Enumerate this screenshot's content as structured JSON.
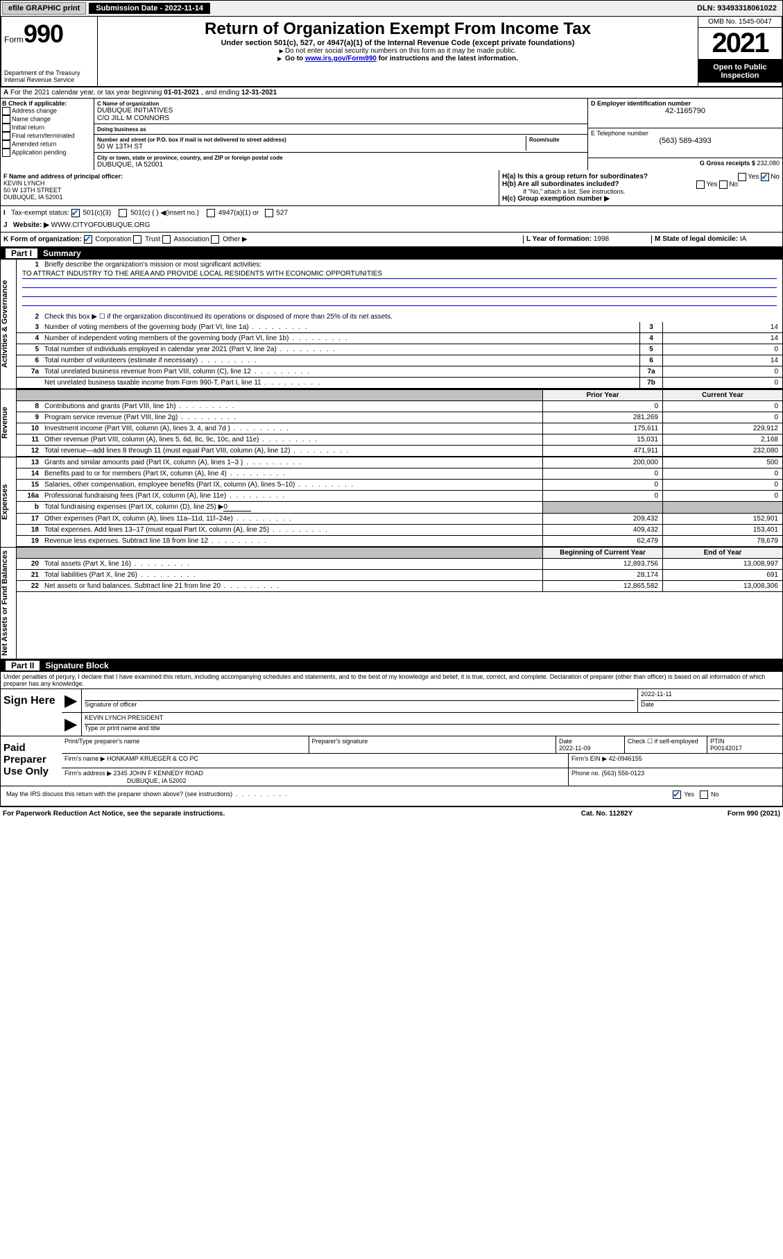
{
  "topbar": {
    "efile": "efile GRAPHIC print",
    "submission_label": "Submission Date -",
    "submission_date": "2022-11-14",
    "dln_label": "DLN:",
    "dln": "93493318061022"
  },
  "header": {
    "form_label": "Form",
    "form_number": "990",
    "dept": "Department of the Treasury\nInternal Revenue Service",
    "title": "Return of Organization Exempt From Income Tax",
    "subtitle": "Under section 501(c), 527, or 4947(a)(1) of the Internal Revenue Code (except private foundations)",
    "note1": "Do not enter social security numbers on this form as it may be made public.",
    "note2_pre": "Go to ",
    "note2_link": "www.irs.gov/Form990",
    "note2_post": " for instructions and the latest information.",
    "omb": "OMB No. 1545-0047",
    "year": "2021",
    "inspection": "Open to Public Inspection"
  },
  "section_a": {
    "text_pre": "For the 2021 calendar year, or tax year beginning ",
    "begin": "01-01-2021",
    "mid": " , and ending ",
    "end": "12-31-2021"
  },
  "section_b": {
    "label": "B Check if applicable:",
    "opts": [
      "Address change",
      "Name change",
      "Initial return",
      "Final return/terminated",
      "Amended return",
      "Application pending"
    ]
  },
  "section_c": {
    "name_label": "C Name of organization",
    "name": "DUBUQUE INITIATIVES",
    "care_of": "C/O JILL M CONNORS",
    "dba_label": "Doing business as",
    "dba": "",
    "street_label": "Number and street (or P.O. box if mail is not delivered to street address)",
    "room_label": "Room/suite",
    "street": "50 W 13TH ST",
    "city_label": "City or town, state or province, country, and ZIP or foreign postal code",
    "city": "DUBUQUE, IA  52001"
  },
  "section_d": {
    "label": "D Employer identification number",
    "val": "42-1165790"
  },
  "section_e": {
    "label": "E Telephone number",
    "val": "(563) 589-4393"
  },
  "section_g": {
    "label": "G Gross receipts $",
    "val": "232,080"
  },
  "section_f": {
    "label": "F  Name and address of principal officer:",
    "name": "KEVIN LYNCH",
    "addr1": "50 W 13TH STREET",
    "addr2": "DUBUQUE, IA  52001"
  },
  "section_h": {
    "ha": "H(a)  Is this a group return for subordinates?",
    "ha_no_checked": true,
    "hb": "H(b)  Are all subordinates included?",
    "hb_note": "If \"No,\" attach a list. See instructions.",
    "hc": "H(c)  Group exemption number ▶"
  },
  "section_i": {
    "label": "Tax-exempt status:",
    "opt1": "501(c)(3)",
    "opt1_checked": true,
    "opt2": "501(c) (   ) ◀(insert no.)",
    "opt3": "4947(a)(1) or",
    "opt4": "527"
  },
  "section_j": {
    "label": "Website: ▶",
    "val": "WWW.CITYOFDUBUQUE.ORG"
  },
  "section_k": {
    "label": "K Form of organization:",
    "opts": [
      "Corporation",
      "Trust",
      "Association",
      "Other ▶"
    ],
    "checked_index": 0
  },
  "section_l": {
    "label": "L Year of formation:",
    "val": "1998"
  },
  "section_m": {
    "label": "M State of legal domicile:",
    "val": "IA"
  },
  "part1": {
    "label": "Part I",
    "title": "Summary",
    "line1_label": "Briefly describe the organization's mission or most significant activities:",
    "mission": "TO ATTRACT INDUSTRY TO THE AREA AND PROVIDE LOCAL RESIDENTS WITH ECONOMIC OPPORTUNITIES",
    "line2": "Check this box ▶ ☐  if the organization discontinued its operations or disposed of more than 25% of its net assets.",
    "governance_lines": [
      {
        "n": "3",
        "d": "Number of voting members of the governing body (Part VI, line 1a)",
        "c": "3",
        "v": "14"
      },
      {
        "n": "4",
        "d": "Number of independent voting members of the governing body (Part VI, line 1b)",
        "c": "4",
        "v": "14"
      },
      {
        "n": "5",
        "d": "Total number of individuals employed in calendar year 2021 (Part V, line 2a)",
        "c": "5",
        "v": "0"
      },
      {
        "n": "6",
        "d": "Total number of volunteers (estimate if necessary)",
        "c": "6",
        "v": "14"
      },
      {
        "n": "7a",
        "d": "Total unrelated business revenue from Part VIII, column (C), line 12",
        "c": "7a",
        "v": "0"
      },
      {
        "n": "",
        "d": "Net unrelated business taxable income from Form 990-T, Part I, line 11",
        "c": "7b",
        "v": "0"
      }
    ],
    "col_prior": "Prior Year",
    "col_current": "Current Year",
    "revenue_lines": [
      {
        "n": "8",
        "d": "Contributions and grants (Part VIII, line 1h)",
        "p": "0",
        "c": "0"
      },
      {
        "n": "9",
        "d": "Program service revenue (Part VIII, line 2g)",
        "p": "281,269",
        "c": "0"
      },
      {
        "n": "10",
        "d": "Investment income (Part VIII, column (A), lines 3, 4, and 7d )",
        "p": "175,611",
        "c": "229,912"
      },
      {
        "n": "11",
        "d": "Other revenue (Part VIII, column (A), lines 5, 6d, 8c, 9c, 10c, and 11e)",
        "p": "15,031",
        "c": "2,168"
      },
      {
        "n": "12",
        "d": "Total revenue—add lines 8 through 11 (must equal Part VIII, column (A), line 12)",
        "p": "471,911",
        "c": "232,080"
      }
    ],
    "expense_lines": [
      {
        "n": "13",
        "d": "Grants and similar amounts paid (Part IX, column (A), lines 1–3 )",
        "p": "200,000",
        "c": "500"
      },
      {
        "n": "14",
        "d": "Benefits paid to or for members (Part IX, column (A), line 4)",
        "p": "0",
        "c": "0"
      },
      {
        "n": "15",
        "d": "Salaries, other compensation, employee benefits (Part IX, column (A), lines 5–10)",
        "p": "0",
        "c": "0"
      },
      {
        "n": "16a",
        "d": "Professional fundraising fees (Part IX, column (A), line 11e)",
        "p": "0",
        "c": "0"
      }
    ],
    "line16b_label": "Total fundraising expenses (Part IX, column (D), line 25) ▶",
    "line16b_val": "0",
    "expense_lines2": [
      {
        "n": "17",
        "d": "Other expenses (Part IX, column (A), lines 11a–11d, 11f–24e)",
        "p": "209,432",
        "c": "152,901"
      },
      {
        "n": "18",
        "d": "Total expenses. Add lines 13–17 (must equal Part IX, column (A), line 25)",
        "p": "409,432",
        "c": "153,401"
      },
      {
        "n": "19",
        "d": "Revenue less expenses. Subtract line 18 from line 12",
        "p": "62,479",
        "c": "78,679"
      }
    ],
    "col_begin": "Beginning of Current Year",
    "col_end": "End of Year",
    "net_lines": [
      {
        "n": "20",
        "d": "Total assets (Part X, line 16)",
        "p": "12,893,756",
        "c": "13,008,997"
      },
      {
        "n": "21",
        "d": "Total liabilities (Part X, line 26)",
        "p": "28,174",
        "c": "691"
      },
      {
        "n": "22",
        "d": "Net assets or fund balances. Subtract line 21 from line 20",
        "p": "12,865,582",
        "c": "13,008,306"
      }
    ]
  },
  "part2": {
    "label": "Part II",
    "title": "Signature Block",
    "declaration": "Under penalties of perjury, I declare that I have examined this return, including accompanying schedules and statements, and to the best of my knowledge and belief, it is true, correct, and complete. Declaration of preparer (other than officer) is based on all information of which preparer has any knowledge.",
    "sign_here": "Sign Here",
    "sig_officer": "Signature of officer",
    "sig_date": "2022-11-11",
    "date_label": "Date",
    "officer_name": "KEVIN LYNCH  PRESIDENT",
    "type_name": "Type or print name and title",
    "paid": "Paid Preparer Use Only",
    "prep_name_label": "Print/Type preparer's name",
    "prep_sig_label": "Preparer's signature",
    "prep_date_label": "Date",
    "prep_date": "2022-11-09",
    "check_if": "Check ☐ if self-employed",
    "ptin_label": "PTIN",
    "ptin": "P00142017",
    "firm_name_label": "Firm's name    ▶",
    "firm_name": "HONKAMP KRUEGER & CO PC",
    "firm_ein_label": "Firm's EIN ▶",
    "firm_ein": "42-0946155",
    "firm_addr_label": "Firm's address ▶",
    "firm_addr1": "2345 JOHN F KENNEDY ROAD",
    "firm_addr2": "DUBUQUE, IA  52002",
    "phone_label": "Phone no.",
    "phone": "(563) 556-0123",
    "discuss": "May the IRS discuss this return with the preparer shown above? (see instructions)",
    "discuss_yes_checked": true
  },
  "footer": {
    "left": "For Paperwork Reduction Act Notice, see the separate instructions.",
    "mid": "Cat. No. 11282Y",
    "right_pre": "Form ",
    "right_bold": "990",
    "right_post": " (2021)"
  },
  "side_labels": {
    "governance": "Activities & Governance",
    "revenue": "Revenue",
    "expenses": "Expenses",
    "net": "Net Assets or Fund Balances"
  }
}
